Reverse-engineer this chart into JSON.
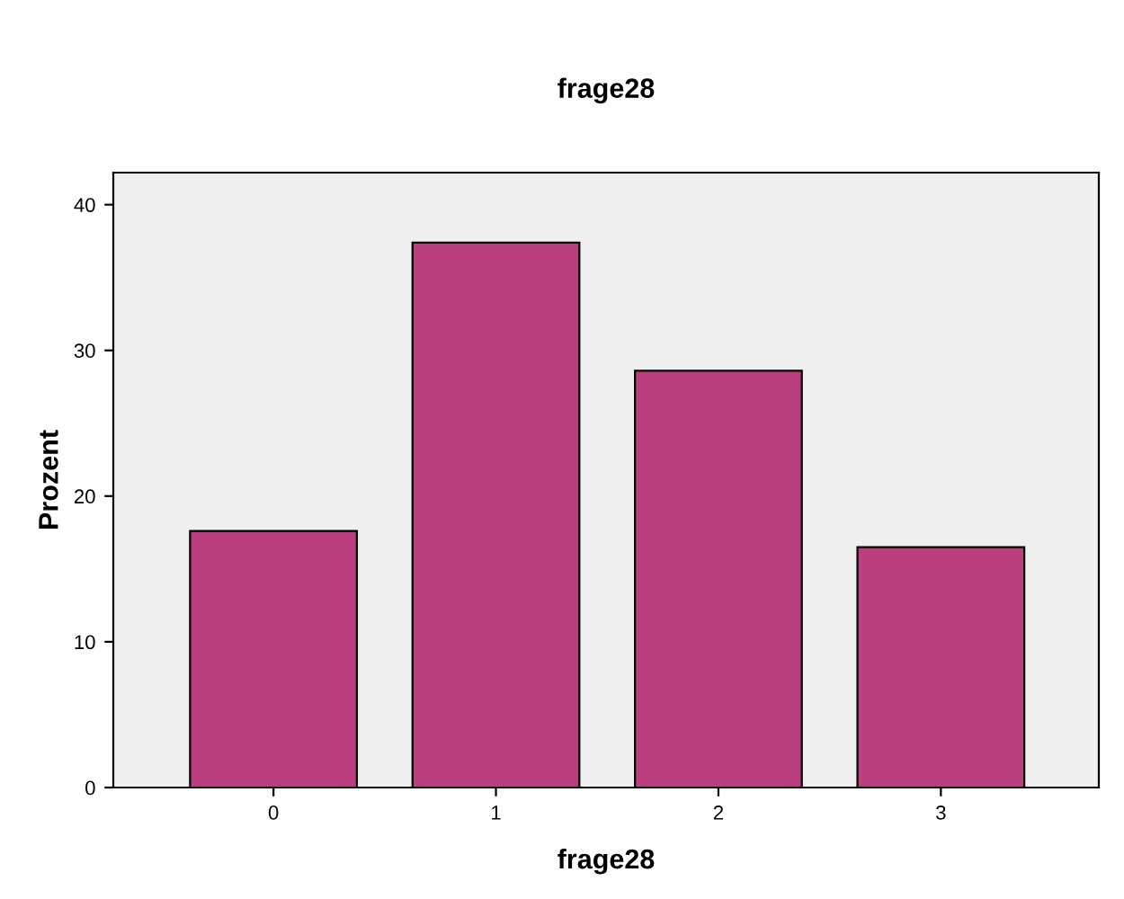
{
  "chart_data": {
    "type": "bar",
    "title": "frage28",
    "xlabel": "frage28",
    "ylabel": "Prozent",
    "categories": [
      "0",
      "1",
      "2",
      "3"
    ],
    "values": [
      17.6,
      37.4,
      28.6,
      16.5
    ],
    "color": "#bb3e7e",
    "ylim": [
      0,
      42.2
    ],
    "yticks": [
      0,
      10,
      20,
      30,
      40
    ],
    "grid": false,
    "legend": false
  }
}
